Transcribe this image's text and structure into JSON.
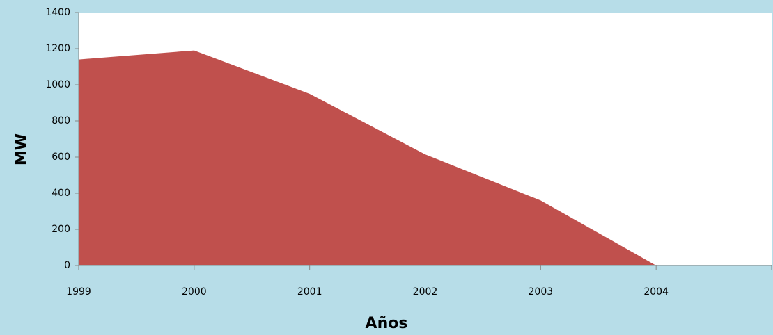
{
  "chart_data": {
    "type": "area",
    "categories": [
      "1999",
      "2000",
      "2001",
      "2002",
      "2003",
      "2004",
      null
    ],
    "values": [
      1140,
      1190,
      950,
      615,
      360,
      0,
      null
    ],
    "color": "#c0504d",
    "xlabel": "Años",
    "ylabel": "MW",
    "ylim": [
      0,
      1400
    ],
    "yticks": [
      0,
      200,
      400,
      600,
      800,
      1000,
      1200,
      1400
    ]
  }
}
